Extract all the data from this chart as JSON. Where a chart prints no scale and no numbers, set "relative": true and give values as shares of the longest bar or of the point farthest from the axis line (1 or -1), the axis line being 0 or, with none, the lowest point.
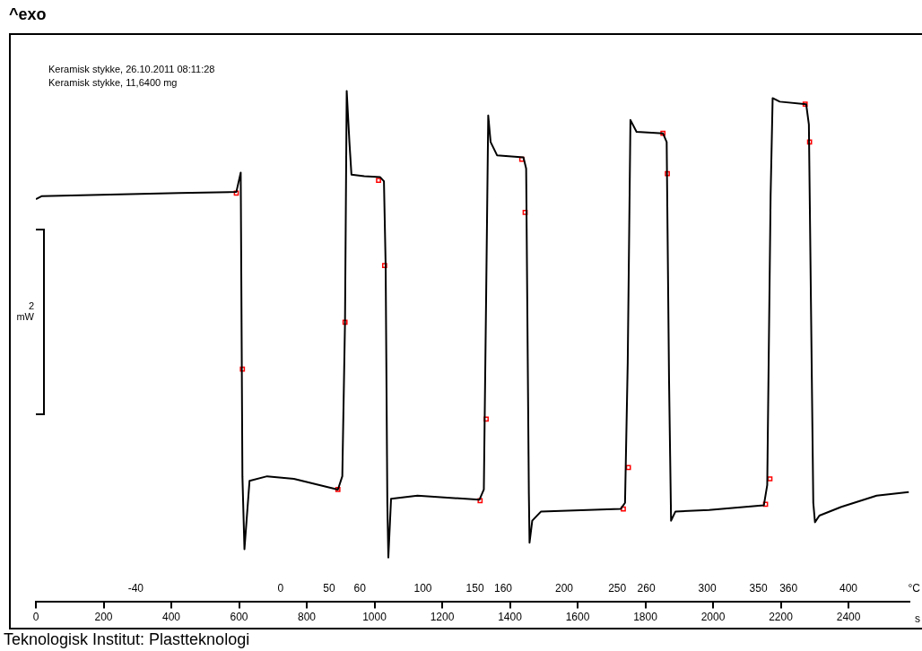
{
  "chart_data": {
    "type": "line",
    "title": "^exo",
    "ylabel": "2 mW",
    "xlabel": "s",
    "x2label": "°C",
    "relative": true,
    "xlim": [
      0,
      2580
    ],
    "xticks": [
      0,
      200,
      400,
      600,
      800,
      1000,
      1200,
      1400,
      1600,
      1800,
      2000,
      2200,
      2400
    ],
    "annotations": [
      "Keramisk stykke, 26.10.2011 08:11:28",
      "Keramisk stykke, 11,6400 mg",
      "Teknologisk Institut: Plastteknologi",
      "-40",
      "0",
      "50",
      "60",
      "100",
      "150",
      "160",
      "200",
      "250",
      "260",
      "300",
      "350",
      "360",
      "400"
    ],
    "series": [
      {
        "type": "line",
        "color": "#000000",
        "marker": "none",
        "x": [
          0,
          18,
          162,
          423,
          592,
          605,
          610,
          616,
          631,
          683,
          762,
          892,
          905,
          913,
          918,
          926,
          932,
          970,
          1017,
          1028,
          1033,
          1038,
          1041,
          1049,
          1127,
          1310,
          1323,
          1330,
          1336,
          1343,
          1362,
          1440,
          1448,
          1456,
          1458,
          1466,
          1492,
          1727,
          1740,
          1748,
          1756,
          1774,
          1852,
          1863,
          1870,
          1876,
          1889,
          1988,
          2150,
          2160,
          2170,
          2176,
          2197,
          2275,
          2283,
          2296,
          2301,
          2314,
          2379,
          2483,
          2578
        ],
        "values": [
          0.788,
          0.794,
          0.796,
          0.8,
          0.802,
          0.84,
          0.245,
          0.102,
          0.236,
          0.245,
          0.24,
          0.219,
          0.245,
          0.547,
          1.0,
          0.9,
          0.836,
          0.833,
          0.831,
          0.823,
          0.658,
          0.193,
          0.086,
          0.201,
          0.207,
          0.199,
          0.219,
          0.607,
          0.952,
          0.9,
          0.874,
          0.87,
          0.848,
          0.211,
          0.115,
          0.158,
          0.176,
          0.181,
          0.193,
          0.469,
          0.943,
          0.92,
          0.917,
          0.9,
          0.434,
          0.158,
          0.176,
          0.179,
          0.188,
          0.228,
          0.796,
          0.986,
          0.979,
          0.974,
          0.934,
          0.193,
          0.155,
          0.168,
          0.185,
          0.207,
          0.214
        ]
      },
      {
        "type": "scatter",
        "color": "#ff0000",
        "marker": "square",
        "x": [
          592,
          610,
          892,
          913,
          1012,
          1030,
          1312,
          1330,
          1435,
          1445,
          1735,
          1750,
          1852,
          1865,
          2155,
          2168,
          2272,
          2285
        ],
        "values": [
          0.8,
          0.455,
          0.219,
          0.547,
          0.825,
          0.658,
          0.197,
          0.357,
          0.866,
          0.762,
          0.181,
          0.262,
          0.917,
          0.838,
          0.19,
          0.24,
          0.974,
          0.9
        ]
      }
    ]
  }
}
